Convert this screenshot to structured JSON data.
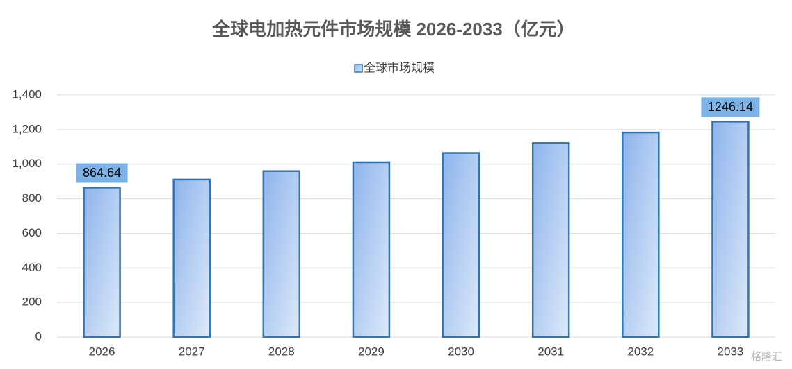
{
  "chart_data": {
    "type": "bar",
    "title": "全球电加热元件市场规模 2026-2033（亿元）",
    "categories": [
      "2026",
      "2027",
      "2028",
      "2029",
      "2030",
      "2031",
      "2032",
      "2033"
    ],
    "series": [
      {
        "name": "全球市场规模",
        "color": "#2e75b6",
        "values": [
          864.64,
          911,
          960,
          1011,
          1065,
          1122,
          1183,
          1246.14
        ],
        "value_labels": [
          "864.64",
          null,
          null,
          null,
          null,
          null,
          null,
          "1246.14"
        ]
      }
    ],
    "ylim": [
      0,
      1400
    ],
    "yticks": [
      0,
      200,
      400,
      600,
      800,
      {
        "value": 1000,
        "label": "1,000"
      },
      {
        "value": 1200,
        "label": "1,200"
      },
      {
        "value": 1400,
        "label": "1,400"
      }
    ],
    "grid": true,
    "legend": "top",
    "watermark": "格隆汇"
  }
}
